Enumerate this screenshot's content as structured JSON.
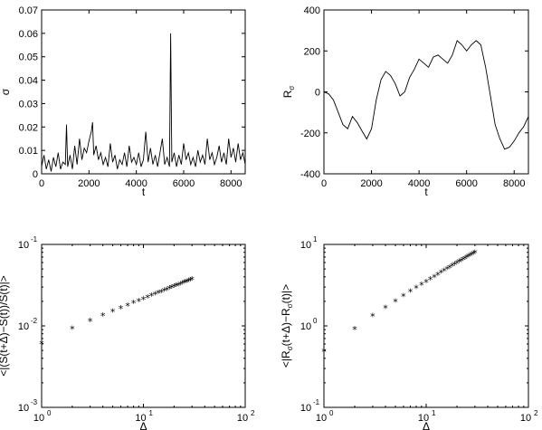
{
  "chart_data": [
    {
      "id": "sigma",
      "type": "line",
      "xlabel": "t",
      "ylabel": "σ",
      "xlim": [
        0,
        8600
      ],
      "ylim": [
        0,
        0.07
      ],
      "xticks": [
        0,
        2000,
        4000,
        6000,
        8000
      ],
      "xtick_labels": [
        "0",
        "2000",
        "4000",
        "6000",
        "8000"
      ],
      "yticks": [
        0,
        0.01,
        0.02,
        0.03,
        0.04,
        0.05,
        0.06,
        0.07
      ],
      "ytick_labels": [
        "0",
        "0.01",
        "0.02",
        "0.03",
        "0.04",
        "0.05",
        "0.06",
        "0.07"
      ],
      "grid": false,
      "series": [
        {
          "x": [
            0,
            100,
            200,
            300,
            400,
            500,
            600,
            700,
            800,
            900,
            1000,
            1050,
            1100,
            1200,
            1300,
            1400,
            1500,
            1600,
            1700,
            1800,
            1900,
            2000,
            2100,
            2150,
            2200,
            2300,
            2400,
            2500,
            2600,
            2700,
            2800,
            2900,
            3000,
            3100,
            3200,
            3300,
            3400,
            3500,
            3600,
            3700,
            3800,
            3900,
            4000,
            4100,
            4200,
            4300,
            4400,
            4500,
            4600,
            4700,
            4800,
            4900,
            5000,
            5100,
            5200,
            5300,
            5400,
            5450,
            5500,
            5600,
            5700,
            5800,
            5900,
            6000,
            6100,
            6200,
            6300,
            6400,
            6500,
            6600,
            6700,
            6800,
            6900,
            7000,
            7100,
            7200,
            7300,
            7400,
            7500,
            7600,
            7700,
            7800,
            7900,
            8000,
            8100,
            8200,
            8300,
            8400,
            8500,
            8600
          ],
          "values": [
            0.003,
            0.008,
            0.002,
            0.006,
            0.001,
            0.007,
            0.003,
            0.009,
            0.002,
            0.005,
            0.004,
            0.021,
            0.003,
            0.008,
            0.002,
            0.012,
            0.004,
            0.015,
            0.006,
            0.011,
            0.009,
            0.014,
            0.018,
            0.022,
            0.008,
            0.012,
            0.006,
            0.009,
            0.004,
            0.007,
            0.003,
            0.013,
            0.005,
            0.008,
            0.002,
            0.006,
            0.004,
            0.009,
            0.003,
            0.012,
            0.005,
            0.007,
            0.004,
            0.009,
            0.003,
            0.006,
            0.018,
            0.005,
            0.011,
            0.004,
            0.008,
            0.003,
            0.009,
            0.015,
            0.004,
            0.007,
            0.003,
            0.06,
            0.005,
            0.009,
            0.003,
            0.008,
            0.004,
            0.013,
            0.006,
            0.009,
            0.004,
            0.007,
            0.003,
            0.01,
            0.005,
            0.008,
            0.004,
            0.015,
            0.006,
            0.009,
            0.004,
            0.007,
            0.012,
            0.005,
            0.009,
            0.004,
            0.015,
            0.007,
            0.011,
            0.005,
            0.013,
            0.006,
            0.009,
            0.004
          ]
        }
      ]
    },
    {
      "id": "rsigma",
      "type": "line",
      "xlabel": "t",
      "ylabel": "R",
      "ylabel_sub": "σ",
      "xlim": [
        0,
        8600
      ],
      "ylim": [
        -400,
        400
      ],
      "xticks": [
        0,
        2000,
        4000,
        6000,
        8000
      ],
      "xtick_labels": [
        "0",
        "2000",
        "4000",
        "6000",
        "8000"
      ],
      "yticks": [
        -400,
        -200,
        0,
        200,
        400
      ],
      "ytick_labels": [
        "-400",
        "-200",
        "0",
        "200",
        "400"
      ],
      "grid": false,
      "series": [
        {
          "x": [
            0,
            200,
            400,
            600,
            800,
            1000,
            1200,
            1400,
            1600,
            1800,
            2000,
            2200,
            2400,
            2600,
            2800,
            3000,
            3200,
            3400,
            3600,
            3800,
            4000,
            4200,
            4400,
            4600,
            4800,
            5000,
            5200,
            5400,
            5600,
            5800,
            6000,
            6200,
            6400,
            6600,
            6800,
            7000,
            7200,
            7400,
            7600,
            7800,
            8000,
            8200,
            8400,
            8600
          ],
          "values": [
            0,
            -10,
            -40,
            -100,
            -160,
            -180,
            -120,
            -150,
            -190,
            -230,
            -180,
            -40,
            60,
            100,
            80,
            40,
            -20,
            0,
            70,
            110,
            160,
            140,
            120,
            170,
            180,
            160,
            140,
            180,
            250,
            230,
            200,
            230,
            250,
            230,
            120,
            -20,
            -160,
            -230,
            -280,
            -270,
            -240,
            -200,
            -170,
            -120
          ]
        }
      ]
    },
    {
      "id": "loglog-s",
      "type": "scatter",
      "xlabel": "Δ",
      "ylabel": "<|(S(t+Δ)−S(t))/S(t)|>",
      "xscale": "log",
      "yscale": "log",
      "xlim": [
        1,
        100
      ],
      "ylim": [
        0.001,
        0.1
      ],
      "xtick_values": [
        1,
        10,
        100
      ],
      "xtick_base": [
        "10",
        "10",
        "10"
      ],
      "xtick_exp": [
        "0",
        "1",
        "2"
      ],
      "ytick_values": [
        0.001,
        0.01,
        0.1
      ],
      "ytick_base": [
        "10",
        "10",
        "10"
      ],
      "ytick_exp": [
        "-3",
        "-2",
        "-1"
      ],
      "marker": "*",
      "grid": false,
      "series": [
        {
          "x": [
            1,
            2,
            3,
            4,
            5,
            6,
            7,
            8,
            9,
            10,
            11,
            12,
            13,
            14,
            15,
            16,
            17,
            18,
            19,
            20,
            21,
            22,
            23,
            24,
            25,
            26,
            27,
            28,
            29,
            30
          ],
          "values": [
            0.006,
            0.0091,
            0.0113,
            0.0132,
            0.0148,
            0.0163,
            0.0176,
            0.0189,
            0.02,
            0.0211,
            0.0222,
            0.0232,
            0.0241,
            0.025,
            0.0259,
            0.0268,
            0.0276,
            0.0284,
            0.0292,
            0.03,
            0.0307,
            0.0314,
            0.0321,
            0.0328,
            0.0335,
            0.0342,
            0.0348,
            0.0355,
            0.0361,
            0.0367
          ]
        }
      ]
    },
    {
      "id": "loglog-r",
      "type": "scatter",
      "xlabel": "Δ",
      "ylabel": "<|R(t+Δ)−R(t)|>",
      "ylabel_parts": [
        "<|R",
        "σ",
        "(t+Δ)−R",
        "σ",
        "(t)|>"
      ],
      "xscale": "log",
      "yscale": "log",
      "xlim": [
        1,
        100
      ],
      "ylim": [
        0.1,
        10
      ],
      "xtick_values": [
        1,
        10,
        100
      ],
      "xtick_base": [
        "10",
        "10",
        "10"
      ],
      "xtick_exp": [
        "0",
        "1",
        "2"
      ],
      "ytick_values": [
        0.1,
        1,
        10
      ],
      "ytick_base": [
        "10",
        "10",
        "10"
      ],
      "ytick_exp": [
        "-1",
        "0",
        "1"
      ],
      "marker": "*",
      "grid": false,
      "series": [
        {
          "x": [
            1,
            2,
            3,
            4,
            5,
            6,
            7,
            8,
            9,
            10,
            11,
            12,
            13,
            14,
            15,
            16,
            17,
            18,
            19,
            20,
            21,
            22,
            23,
            24,
            25,
            26,
            27,
            28,
            29,
            30
          ],
          "values": [
            0.48,
            0.9,
            1.3,
            1.65,
            1.98,
            2.3,
            2.6,
            2.9,
            3.17,
            3.43,
            3.7,
            3.95,
            4.2,
            4.44,
            4.68,
            4.92,
            5.15,
            5.38,
            5.6,
            5.82,
            6.04,
            6.25,
            6.46,
            6.67,
            6.87,
            7.07,
            7.27,
            7.47,
            7.66,
            7.85
          ]
        }
      ]
    }
  ]
}
